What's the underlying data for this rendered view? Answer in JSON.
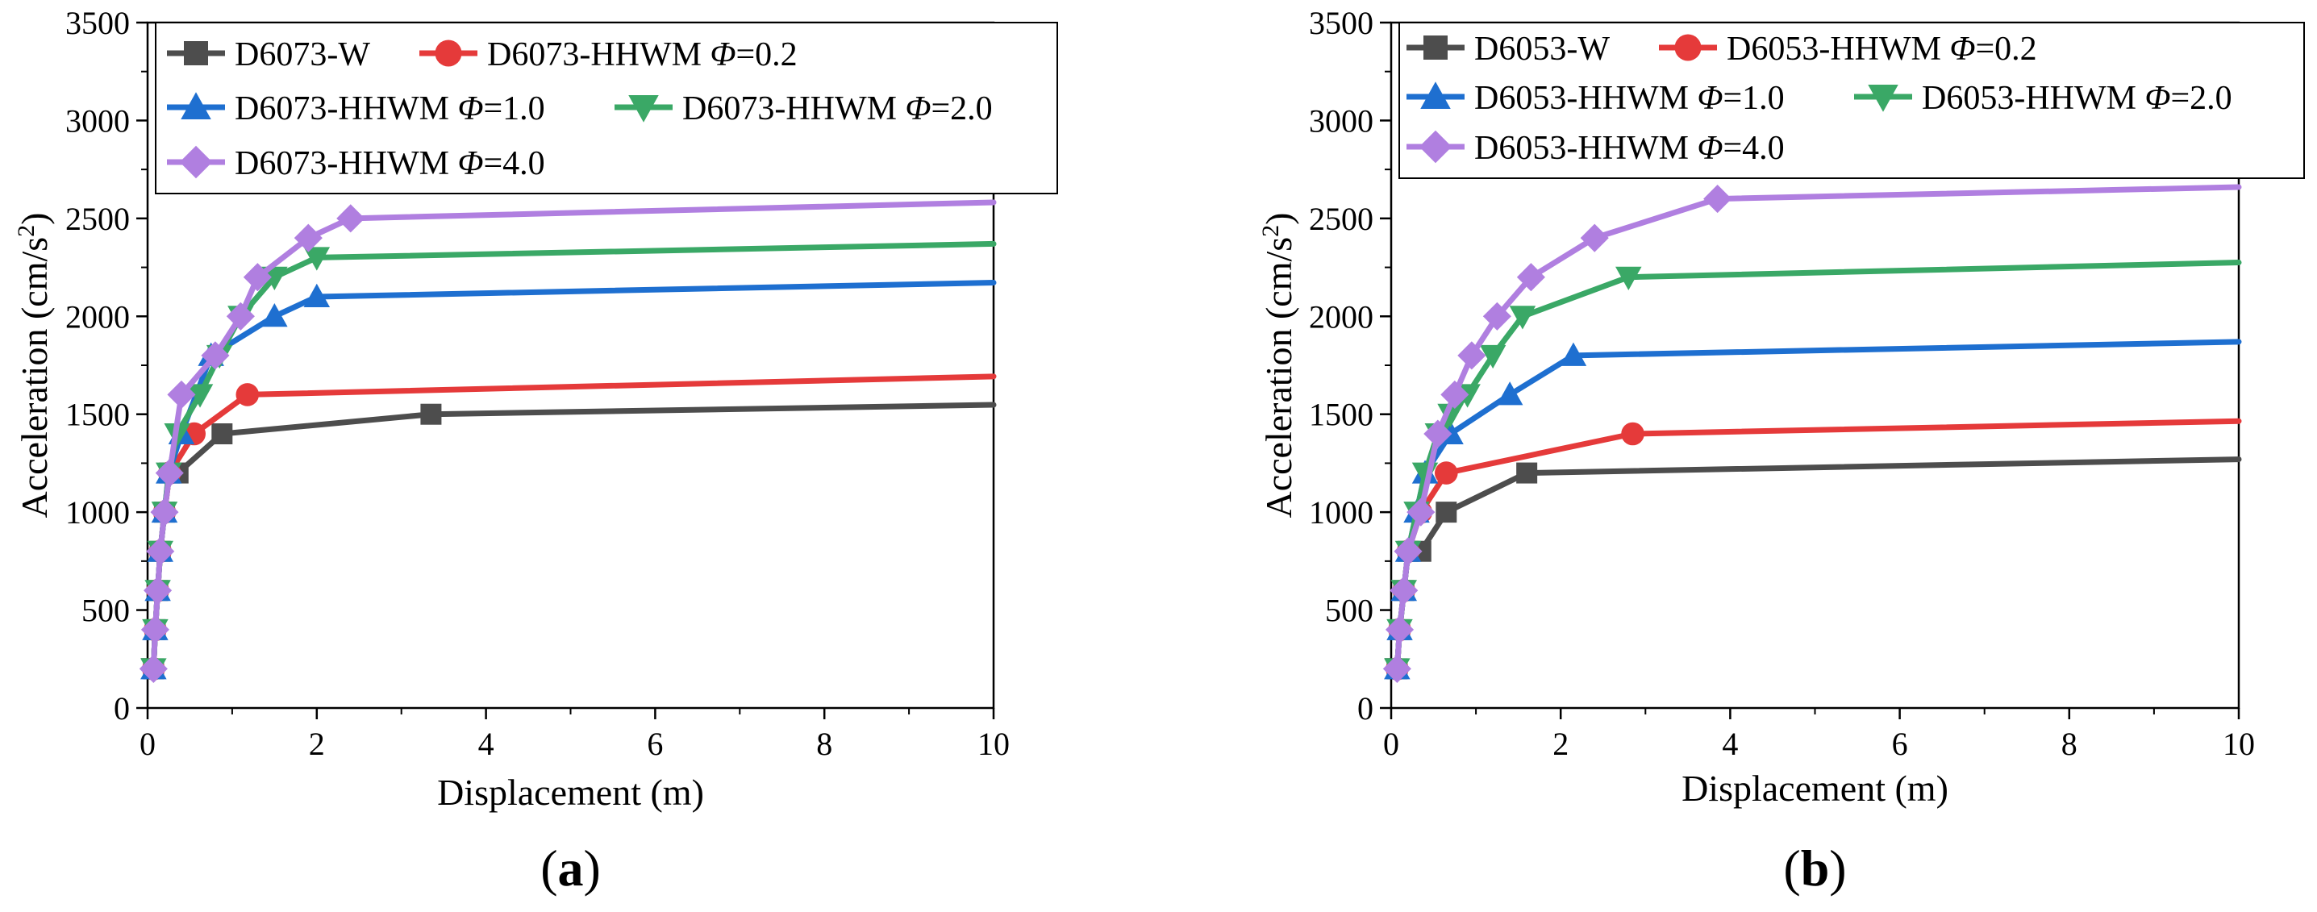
{
  "chart_data": [
    {
      "type": "line",
      "panel_label": "a",
      "title": "",
      "xlabel": "Displacement (m)",
      "ylabel": "Acceleration (cm/s",
      "ylabel_sup": "2",
      "ylabel_end": ")",
      "xlim": [
        0,
        10
      ],
      "ylim": [
        0,
        3500
      ],
      "xticks": [
        0,
        2,
        4,
        6,
        8,
        10
      ],
      "yticks": [
        0,
        500,
        1000,
        1500,
        2000,
        2500,
        3000,
        3500
      ],
      "legend_position": "top-left",
      "series": [
        {
          "name": "D6073-W",
          "prefix": "D6073-W",
          "phi": "",
          "color": "#4d4d4d",
          "marker": "square",
          "x": [
            0.07,
            0.09,
            0.12,
            0.15,
            0.2,
            0.26,
            0.36,
            0.88,
            3.35,
            10
          ],
          "y": [
            200,
            400,
            600,
            800,
            1000,
            1200,
            1200,
            1400,
            1500,
            1548
          ],
          "markers": 9
        },
        {
          "name": "D6073-HHWM Φ=0.2",
          "prefix": "D6073-HHWM ",
          "phi": "=0.2",
          "color": "#e53a3a",
          "marker": "circle",
          "x": [
            0.07,
            0.09,
            0.12,
            0.15,
            0.2,
            0.26,
            0.55,
            1.18,
            10
          ],
          "y": [
            200,
            400,
            600,
            800,
            1000,
            1200,
            1400,
            1600,
            1693
          ],
          "markers": 8
        },
        {
          "name": "D6073-HHWM Φ=1.0",
          "prefix": "D6073-HHWM ",
          "phi": "=1.0",
          "color": "#1e6fd0",
          "marker": "triangle-up",
          "x": [
            0.07,
            0.09,
            0.12,
            0.15,
            0.2,
            0.25,
            0.4,
            0.75,
            1.5,
            2.0,
            10
          ],
          "y": [
            200,
            400,
            600,
            800,
            1000,
            1200,
            1400,
            1800,
            2000,
            2100,
            2172
          ],
          "markers": 10
        },
        {
          "name": "D6073-HHWM Φ=2.0",
          "prefix": "D6073-HHWM ",
          "phi": "=2.0",
          "color": "#3aa866",
          "marker": "triangle-down",
          "x": [
            0.07,
            0.09,
            0.12,
            0.15,
            0.2,
            0.25,
            0.35,
            0.62,
            0.85,
            1.1,
            1.5,
            2.0,
            10
          ],
          "y": [
            200,
            400,
            600,
            800,
            1000,
            1200,
            1400,
            1600,
            1800,
            2000,
            2200,
            2300,
            2370
          ],
          "markers": 12
        },
        {
          "name": "D6073-HHWM Φ=4.0",
          "prefix": "D6073-HHWM ",
          "phi": "=4.0",
          "color": "#b07fe0",
          "marker": "diamond",
          "x": [
            0.07,
            0.09,
            0.12,
            0.15,
            0.2,
            0.26,
            0.4,
            0.8,
            1.1,
            1.3,
            1.9,
            2.4,
            10
          ],
          "y": [
            200,
            400,
            600,
            800,
            1000,
            1200,
            1600,
            1800,
            2000,
            2200,
            2400,
            2500,
            2582
          ],
          "markers": 12
        }
      ]
    },
    {
      "type": "line",
      "panel_label": "b",
      "title": "",
      "xlabel": "Displacement (m)",
      "ylabel": "Acceleration (cm/s",
      "ylabel_sup": "2",
      "ylabel_end": ")",
      "xlim": [
        0,
        10
      ],
      "ylim": [
        0,
        3500
      ],
      "xticks": [
        0,
        2,
        4,
        6,
        8,
        10
      ],
      "yticks": [
        0,
        500,
        1000,
        1500,
        2000,
        2500,
        3000,
        3500
      ],
      "legend_position": "top-left",
      "series": [
        {
          "name": "D6053-W",
          "prefix": "D6053-W",
          "phi": "",
          "color": "#4d4d4d",
          "marker": "square",
          "x": [
            0.07,
            0.1,
            0.15,
            0.2,
            0.35,
            0.65,
            1.6,
            10
          ],
          "y": [
            200,
            400,
            600,
            800,
            800,
            1000,
            1200,
            1270
          ],
          "markers": 7
        },
        {
          "name": "D6053-HHWM Φ=0.2",
          "prefix": "D6053-HHWM ",
          "phi": "=0.2",
          "color": "#e53a3a",
          "marker": "circle",
          "x": [
            0.07,
            0.1,
            0.15,
            0.2,
            0.35,
            0.65,
            2.85,
            10
          ],
          "y": [
            200,
            400,
            600,
            800,
            1000,
            1200,
            1400,
            1465
          ],
          "markers": 7
        },
        {
          "name": "D6053-HHWM Φ=1.0",
          "prefix": "D6053-HHWM ",
          "phi": "=1.0",
          "color": "#1e6fd0",
          "marker": "triangle-up",
          "x": [
            0.07,
            0.1,
            0.15,
            0.2,
            0.3,
            0.4,
            0.7,
            1.4,
            2.15,
            10
          ],
          "y": [
            200,
            400,
            600,
            800,
            1000,
            1200,
            1400,
            1600,
            1800,
            1870
          ],
          "markers": 9
        },
        {
          "name": "D6053-HHWM Φ=2.0",
          "prefix": "D6053-HHWM ",
          "phi": "=2.0",
          "color": "#3aa866",
          "marker": "triangle-down",
          "x": [
            0.07,
            0.1,
            0.15,
            0.2,
            0.3,
            0.4,
            0.55,
            0.7,
            0.9,
            1.2,
            1.55,
            2.8,
            10
          ],
          "y": [
            200,
            400,
            600,
            800,
            1000,
            1200,
            1400,
            1500,
            1600,
            1800,
            2000,
            2200,
            2275
          ],
          "markers": 12
        },
        {
          "name": "D6053-HHWM Φ=4.0",
          "prefix": "D6053-HHWM ",
          "phi": "=4.0",
          "color": "#b07fe0",
          "marker": "diamond",
          "x": [
            0.07,
            0.1,
            0.15,
            0.2,
            0.35,
            0.55,
            0.75,
            0.95,
            1.25,
            1.65,
            2.4,
            3.85,
            10
          ],
          "y": [
            200,
            400,
            600,
            800,
            1000,
            1400,
            1600,
            1800,
            2000,
            2200,
            2400,
            2600,
            2660
          ],
          "markers": 12
        }
      ]
    }
  ]
}
